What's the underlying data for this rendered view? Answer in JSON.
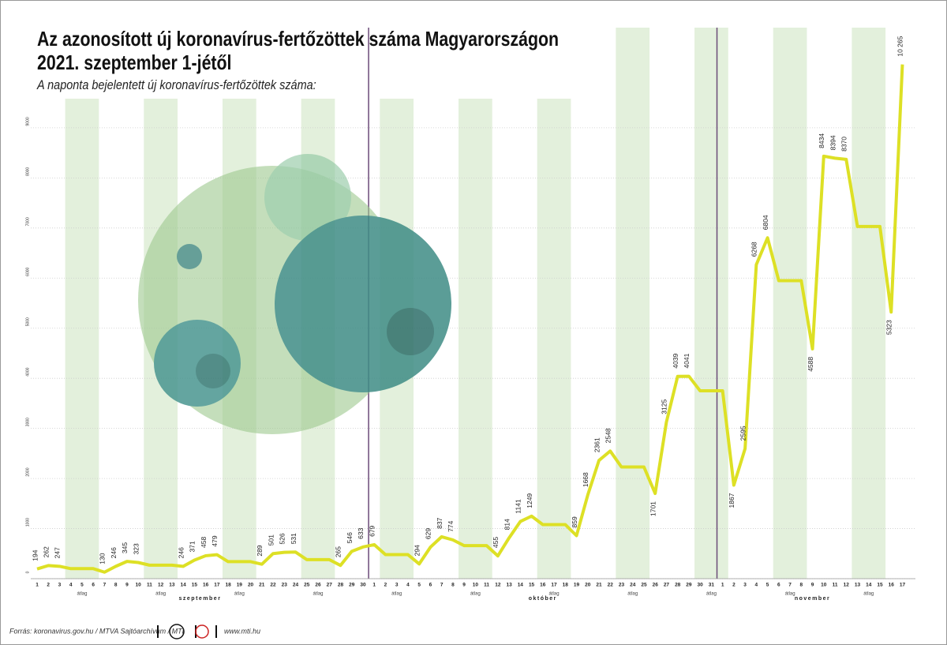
{
  "chart_data": {
    "type": "line",
    "title": [
      "Az azonosított új koronavírus-fertőzöttek száma Magyarországon",
      "2021. szeptember 1-jétől"
    ],
    "subtitle": "A naponta bejelentett új koronavírus-fertőzöttek száma:",
    "categories": [
      1,
      2,
      3,
      4,
      5,
      6,
      7,
      8,
      9,
      10,
      11,
      12,
      13,
      14,
      15,
      16,
      17,
      18,
      19,
      20,
      21,
      22,
      23,
      24,
      25,
      26,
      27,
      28,
      29,
      30,
      1,
      2,
      3,
      4,
      5,
      6,
      7,
      8,
      9,
      10,
      11,
      12,
      13,
      14,
      15,
      16,
      17,
      18,
      19,
      20,
      21,
      22,
      23,
      24,
      25,
      26,
      27,
      28,
      29,
      30,
      31,
      1,
      2,
      3,
      4,
      5,
      6,
      7,
      8,
      9,
      10,
      11,
      12,
      13,
      14,
      15,
      16,
      17
    ],
    "months": [
      "szeptember",
      "október",
      "november"
    ],
    "average_label": "átlag",
    "series": [
      {
        "name": "új fertőzöttek",
        "color": "#dde025",
        "values": [
          194,
          262,
          247,
          200,
          200,
          200,
          130,
          246,
          345,
          323,
          270,
          270,
          270,
          246,
          371,
          458,
          479,
          340,
          340,
          340,
          289,
          501,
          526,
          531,
          380,
          380,
          380,
          265,
          546,
          633,
          679,
          480,
          480,
          480,
          294,
          629,
          837,
          774,
          660,
          660,
          660,
          455,
          814,
          1141,
          1249,
          1080,
          1080,
          1080,
          859,
          1668,
          2361,
          2548,
          2230,
          2230,
          2230,
          1701,
          3125,
          4039,
          4041,
          3750,
          3750,
          3750,
          1867,
          2595,
          6268,
          6804,
          5950,
          5950,
          5950,
          4588,
          8434,
          8394,
          8370,
          7030,
          7030,
          7030,
          5323,
          10265
        ],
        "value_labels": [
          "194",
          "262",
          "247",
          null,
          null,
          null,
          "130",
          "246",
          "345",
          "323",
          null,
          null,
          null,
          "246",
          "371",
          "458",
          "479",
          null,
          null,
          null,
          "289",
          "501",
          "526",
          "531",
          null,
          null,
          null,
          "265",
          "546",
          "633",
          "679",
          null,
          null,
          null,
          "294",
          "629",
          "837",
          "774",
          null,
          null,
          null,
          "455",
          "814",
          "1141",
          "1249",
          null,
          null,
          null,
          "859",
          "1668",
          "2361",
          "2548",
          null,
          null,
          null,
          "1701",
          "3125",
          "4039",
          "4041",
          null,
          null,
          null,
          "1867",
          "2595",
          "6268",
          "6804",
          null,
          null,
          null,
          "4588",
          "8434",
          "8394",
          "8370",
          null,
          null,
          null,
          "5323",
          "10 265"
        ]
      }
    ],
    "ylim": [
      0,
      11000
    ],
    "yticks": [
      0,
      1000,
      2000,
      3000,
      4000,
      5000,
      6000,
      7000,
      8000,
      9000
    ],
    "grid": true,
    "source": "Forrás: koronavirus.gov.hu / MTVA Sajtóarchívum / MTI",
    "website": "www.mti.hu"
  }
}
